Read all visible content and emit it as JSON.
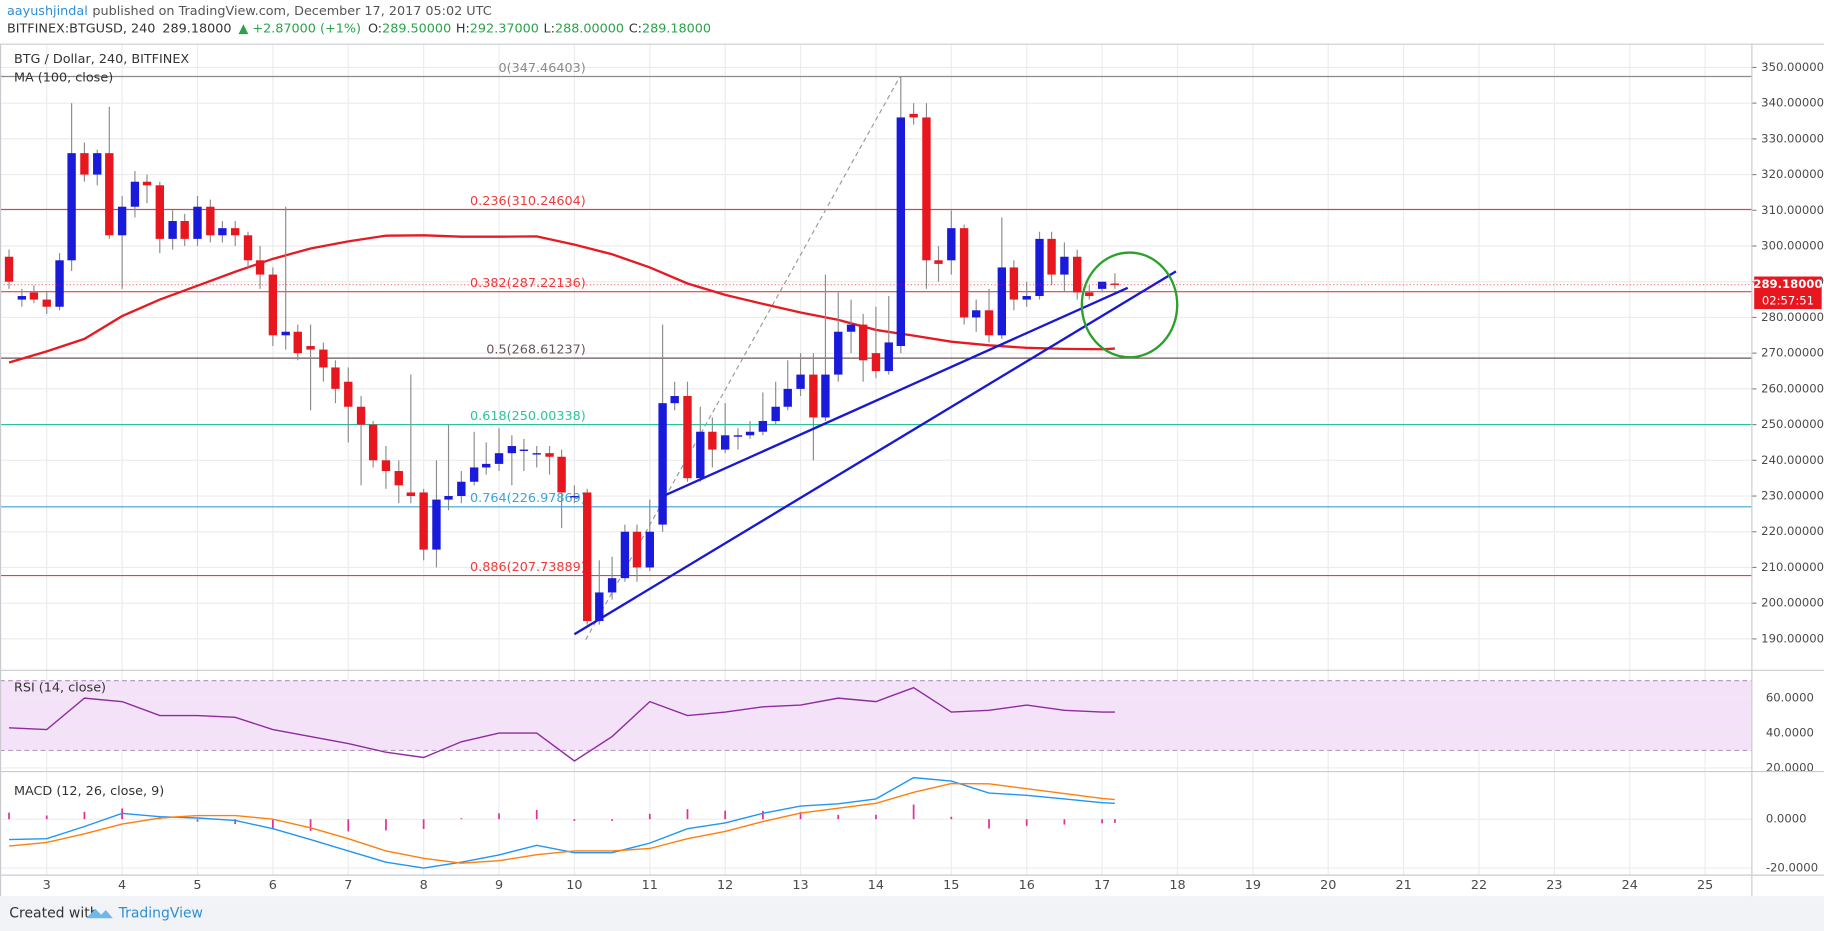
{
  "header": {
    "author": "aayushjindal",
    "published": "published on TradingView.com, December 17, 2017 05:02 UTC",
    "symbol": "BITFINEX:BTGUSD, 240",
    "last": "289.18000",
    "change": "▲ +2.87000 (+1%)",
    "ohlc": [
      {
        "key": "O:",
        "value": "289.50000"
      },
      {
        "key": "H:",
        "value": "292.37000"
      },
      {
        "key": "L:",
        "value": "288.00000"
      },
      {
        "key": "C:",
        "value": "289.18000"
      }
    ]
  },
  "footer": {
    "created": "Created with",
    "brand": "TradingView"
  },
  "chart_data": {
    "type": "candlestick",
    "title": "BTG / Dollar, 240, BITFINEX",
    "up_color": "#1a1adb",
    "down_color": "#e8161e",
    "wick_color": "#8c8c8c",
    "grid": true,
    "xlim": [
      2.38,
      25.62
    ],
    "xticks": [
      3,
      4,
      5,
      6,
      7,
      8,
      9,
      10,
      11,
      12,
      13,
      14,
      15,
      16,
      17,
      18,
      19,
      20,
      21,
      22,
      23,
      24,
      25
    ],
    "ylim": [
      181.2,
      356.5
    ],
    "yticks": [
      {
        "value": 190,
        "label": "190.000000"
      },
      {
        "value": 200,
        "label": "200.000000"
      },
      {
        "value": 210,
        "label": "210.000000"
      },
      {
        "value": 220,
        "label": "220.000000"
      },
      {
        "value": 230,
        "label": "230.000000"
      },
      {
        "value": 240,
        "label": "240.000000"
      },
      {
        "value": 250,
        "label": "250.000000"
      },
      {
        "value": 260,
        "label": "260.000000"
      },
      {
        "value": 270,
        "label": "270.000000"
      },
      {
        "value": 280,
        "label": "280.000000"
      },
      {
        "value": 290,
        "label": "290.000000"
      },
      {
        "value": 300,
        "label": "300.000000"
      },
      {
        "value": 310,
        "label": "310.000000"
      },
      {
        "value": 320,
        "label": "320.000000"
      },
      {
        "value": 330,
        "label": "330.000000"
      },
      {
        "value": 340,
        "label": "340.000000"
      },
      {
        "value": 350,
        "label": "350.000000"
      }
    ],
    "x": [
      2.5,
      2.67,
      2.83,
      3,
      3.17,
      3.33,
      3.5,
      3.67,
      3.83,
      4,
      4.17,
      4.33,
      4.5,
      4.67,
      4.83,
      5,
      5.17,
      5.33,
      5.5,
      5.67,
      5.83,
      6,
      6.17,
      6.33,
      6.5,
      6.67,
      6.83,
      7,
      7.17,
      7.33,
      7.5,
      7.67,
      7.83,
      8,
      8.17,
      8.33,
      8.5,
      8.67,
      8.83,
      9,
      9.17,
      9.33,
      9.5,
      9.67,
      9.83,
      10,
      10.17,
      10.33,
      10.5,
      10.67,
      10.83,
      11,
      11.17,
      11.33,
      11.5,
      11.67,
      11.83,
      12,
      12.17,
      12.33,
      12.5,
      12.67,
      12.83,
      13,
      13.17,
      13.33,
      13.5,
      13.67,
      13.83,
      14,
      14.17,
      14.33,
      14.5,
      14.67,
      14.83,
      15,
      15.17,
      15.33,
      15.5,
      15.67,
      15.83,
      16,
      16.17,
      16.33,
      16.5,
      16.67,
      16.83,
      17,
      17.17
    ],
    "ohlc": [
      [
        297,
        299,
        288,
        290
      ],
      [
        285,
        288,
        283,
        286
      ],
      [
        287,
        289,
        284,
        285
      ],
      [
        285,
        287,
        281,
        283
      ],
      [
        283,
        298,
        282,
        296
      ],
      [
        296,
        340,
        293,
        326
      ],
      [
        326,
        329,
        318,
        320
      ],
      [
        320,
        327,
        317,
        326
      ],
      [
        326,
        339,
        302,
        303
      ],
      [
        303,
        314,
        288,
        311
      ],
      [
        311,
        321,
        308,
        318
      ],
      [
        318,
        320,
        312,
        317
      ],
      [
        317,
        318,
        298,
        302
      ],
      [
        302,
        310,
        299,
        307
      ],
      [
        307,
        309,
        300,
        302
      ],
      [
        302,
        314,
        300,
        311
      ],
      [
        311,
        313,
        301,
        303
      ],
      [
        303,
        307,
        301,
        305
      ],
      [
        305,
        307,
        300,
        303
      ],
      [
        303,
        304,
        294,
        296
      ],
      [
        296,
        300,
        288,
        292
      ],
      [
        292,
        294,
        272,
        275
      ],
      [
        275,
        311,
        271,
        276
      ],
      [
        276,
        278,
        268,
        270
      ],
      [
        272,
        278,
        254,
        271
      ],
      [
        271,
        273,
        262,
        266
      ],
      [
        266,
        268,
        256,
        260
      ],
      [
        262,
        266,
        245,
        255
      ],
      [
        255,
        258,
        233,
        250
      ],
      [
        250,
        251,
        238,
        240
      ],
      [
        240,
        244,
        232,
        237
      ],
      [
        237,
        240,
        228,
        233
      ],
      [
        231,
        264,
        228,
        230
      ],
      [
        231,
        232,
        212,
        215
      ],
      [
        215,
        240,
        210,
        229
      ],
      [
        229,
        250,
        226,
        230
      ],
      [
        230,
        237,
        228,
        234
      ],
      [
        234,
        248,
        233,
        238
      ],
      [
        238,
        245,
        236,
        239
      ],
      [
        239,
        249,
        237,
        242
      ],
      [
        242,
        247,
        233,
        244
      ],
      [
        243,
        246,
        237,
        243
      ],
      [
        242,
        244,
        238,
        242
      ],
      [
        242,
        244,
        236,
        241
      ],
      [
        241,
        243,
        221,
        231
      ],
      [
        230,
        233,
        228,
        230
      ],
      [
        231,
        232,
        194,
        195
      ],
      [
        195,
        212,
        194,
        203
      ],
      [
        203,
        213,
        201,
        207
      ],
      [
        207,
        222,
        206,
        220
      ],
      [
        220,
        222,
        206,
        210
      ],
      [
        210,
        229,
        209,
        220
      ],
      [
        222,
        278,
        220,
        256
      ],
      [
        256,
        262,
        254,
        258
      ],
      [
        258,
        262,
        234,
        235
      ],
      [
        235,
        255,
        234,
        248
      ],
      [
        248,
        252,
        238,
        243
      ],
      [
        243,
        256,
        242,
        247
      ],
      [
        247,
        249,
        243,
        247
      ],
      [
        247,
        251,
        246,
        248
      ],
      [
        248,
        259,
        247,
        251
      ],
      [
        251,
        262,
        250,
        255
      ],
      [
        255,
        268,
        254,
        260
      ],
      [
        260,
        270,
        258,
        264
      ],
      [
        264,
        270,
        240,
        252
      ],
      [
        252,
        292,
        251,
        264
      ],
      [
        264,
        287,
        262,
        276
      ],
      [
        276,
        285,
        270,
        278
      ],
      [
        278,
        281,
        262,
        268
      ],
      [
        270,
        283,
        263,
        265
      ],
      [
        265,
        286,
        264,
        273
      ],
      [
        272,
        347.46403,
        270,
        336
      ],
      [
        337,
        340,
        334,
        336
      ],
      [
        336,
        340,
        288,
        296
      ],
      [
        296,
        300,
        290,
        295
      ],
      [
        296,
        310,
        292,
        305
      ],
      [
        305,
        306,
        278,
        280
      ],
      [
        280,
        285,
        276,
        282
      ],
      [
        282,
        288,
        273,
        275
      ],
      [
        275,
        308,
        274,
        294
      ],
      [
        294,
        296,
        282,
        285
      ],
      [
        285,
        290,
        283,
        286
      ],
      [
        286,
        304,
        285,
        302
      ],
      [
        302,
        304,
        289,
        292
      ],
      [
        292,
        301,
        287,
        297
      ],
      [
        297,
        299,
        285,
        287
      ],
      [
        287,
        289,
        285,
        286
      ],
      [
        288,
        290,
        287,
        290
      ],
      [
        289.5,
        292.37,
        288,
        289.18
      ]
    ],
    "indicator_x": [
      2.5,
      3,
      3.5,
      4,
      4.5,
      5,
      5.5,
      6,
      6.5,
      7,
      7.5,
      8,
      8.5,
      9,
      9.5,
      10,
      10.5,
      11,
      11.5,
      12,
      12.5,
      13,
      13.5,
      14,
      14.5,
      15,
      15.5,
      16,
      16.5,
      17,
      17.17
    ],
    "ma": {
      "name": "MA (100, close)",
      "color": "#e51b23",
      "values": [
        267.4,
        270.5,
        274,
        280.4,
        285,
        288.9,
        292.8,
        296.4,
        299.3,
        301.3,
        302.9,
        303,
        302.6,
        302.6,
        302.7,
        300.4,
        297.7,
        294,
        289.5,
        286.3,
        283.8,
        281.4,
        279.3,
        276.5,
        274.9,
        273.2,
        272.2,
        271.5,
        271.2,
        271.1,
        271.3
      ]
    },
    "fib_levels": [
      {
        "label": "0(347.46403)",
        "value": 347.46403,
        "color": "#8a8a8a"
      },
      {
        "label": "0.236(310.24604)",
        "value": 310.24604,
        "color": "#ef3b3b"
      },
      {
        "label": "0.382(287.22136)",
        "value": 287.22136,
        "color": "#ef3b3b"
      },
      {
        "label": "0.5(268.61237)",
        "value": 268.61237,
        "color": "#6b5656"
      },
      {
        "label": "0.618(250.00338)",
        "value": 250.00338,
        "color": "#2bc49a"
      },
      {
        "label": "0.764(226.97869)",
        "value": 226.97869,
        "color": "#3aa4d4"
      },
      {
        "label": "0.886(207.73889)",
        "value": 207.73889,
        "color": "#ef3b3b"
      }
    ],
    "fib_trend": {
      "x": [
        10.15,
        14.32
      ],
      "y": [
        189.76,
        347.46
      ],
      "color": "#9a9a9a"
    },
    "trend_lines": [
      {
        "x": [
          10.0,
          17.98
        ],
        "y": [
          191.3,
          292.9
        ],
        "color": "#1919d1"
      },
      {
        "x": [
          11.16,
          17.34
        ],
        "y": [
          229.8,
          288.3
        ],
        "color": "#1919d1"
      }
    ],
    "price_tag": {
      "value": 289.18,
      "label": "289.18000",
      "countdown": "02:57:51",
      "color": "#e8161e"
    },
    "rsi": {
      "name": "RSI (14, close)",
      "color": "#8e2ba0",
      "band": [
        30,
        70
      ],
      "band_color": "#f4e3f8",
      "ylim": [
        17.9,
        75.9
      ],
      "yticks": [
        {
          "value": 20,
          "label": "20.0000"
        },
        {
          "value": 40,
          "label": "40.0000"
        },
        {
          "value": 60,
          "label": "60.0000"
        }
      ],
      "values": [
        43,
        42,
        60,
        58,
        50,
        50,
        49,
        42,
        38,
        34,
        29,
        26,
        35,
        40,
        40,
        24,
        38,
        58,
        50,
        52,
        55,
        56,
        60,
        58,
        66,
        52,
        53,
        56,
        53,
        52,
        52
      ]
    },
    "macd": {
      "name": "MACD (12, 26, close, 9)",
      "ylim": [
        -22.9,
        19.5
      ],
      "yticks": [
        {
          "value": 0,
          "label": "0.0000"
        },
        {
          "value": -20,
          "label": "-20.0000"
        }
      ],
      "color": "#2196f3",
      "signal_color": "#ff7f0e",
      "histogram_color": "#e0319b",
      "values": [
        -8.3,
        -8,
        -3,
        2.4,
        1,
        0.5,
        -0.5,
        -3.9,
        -8.3,
        -13,
        -17.6,
        -20,
        -17.6,
        -14.6,
        -10.7,
        -13.7,
        -13.7,
        -9.8,
        -3.9,
        -1.5,
        2.4,
        5.4,
        6.3,
        8.3,
        17,
        15.6,
        10.7,
        9.8,
        8.3,
        6.8,
        6.5
      ],
      "signal": [
        -11,
        -9.5,
        -6,
        -2,
        0.5,
        1.5,
        1.5,
        0,
        -3.5,
        -8,
        -13,
        -16,
        -18,
        -17,
        -14.5,
        -13,
        -13,
        -12,
        -8,
        -5,
        -1,
        2.5,
        4.5,
        6.5,
        11,
        14.6,
        14.5,
        12.5,
        10.5,
        8.5,
        8
      ],
      "histogram": [
        2.7,
        1.5,
        3,
        4.4,
        0.5,
        -1,
        -2,
        -3.9,
        -4.8,
        -5,
        -4.6,
        -4,
        0.4,
        2.4,
        3.8,
        -0.7,
        -0.7,
        2.2,
        4.1,
        3.5,
        3.4,
        2.9,
        1.8,
        1.8,
        6,
        1,
        -3.8,
        -2.7,
        -2.2,
        -1.7,
        -1.5
      ]
    }
  }
}
